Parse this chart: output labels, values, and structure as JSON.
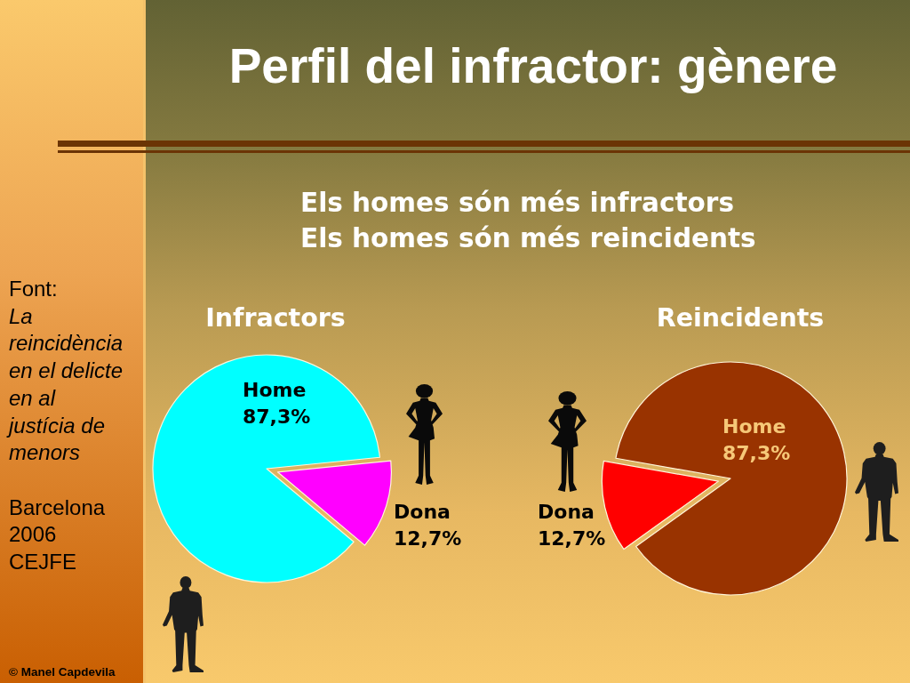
{
  "chart_data": [
    {
      "type": "other",
      "title": "Perfil del infractor: gènere",
      "subtitle": "Els homes són més infractors\nEls homes són més reincidents",
      "annotations": [
        "Font:",
        "La\nreincidència\nen el delicte\nen al\njustícia de\nmenors",
        "Barcelona\n2006\nCEJFE",
        "© Manel Capdevila"
      ]
    },
    {
      "type": "pie",
      "title": "Infractors",
      "categories": [
        "Home",
        "Dona"
      ],
      "values": [
        87.3,
        12.7
      ],
      "value_labels": [
        "87,3%",
        "12,7%"
      ],
      "colors": [
        "#00ffff",
        "#ff00ff"
      ]
    },
    {
      "type": "pie",
      "title": "Reincidents",
      "categories": [
        "Home",
        "Dona"
      ],
      "values": [
        87.3,
        12.7
      ],
      "value_labels": [
        "87,3%",
        "12,7%"
      ],
      "colors": [
        "#993300",
        "#ff0000"
      ]
    }
  ]
}
